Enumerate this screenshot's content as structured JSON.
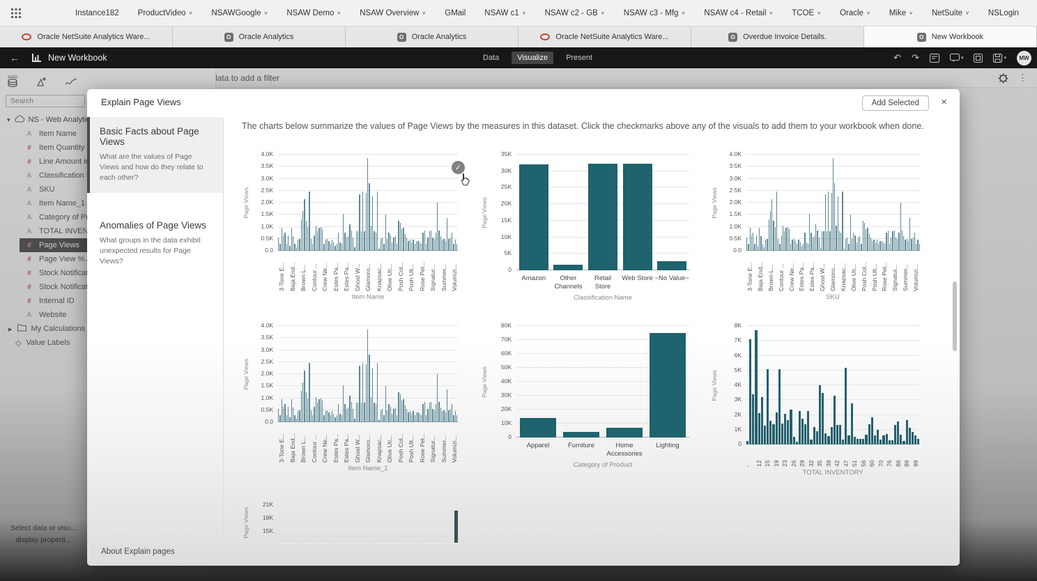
{
  "icons": {
    "back": "←",
    "undo": "↶",
    "redo": "↷",
    "close": "×",
    "check": "✓",
    "plus_circle": "⊕",
    "kebab": "⋮",
    "caret_down": "∨",
    "tree_caret": "▾",
    "collapsed_caret": "▸",
    "value_tag": "◇"
  },
  "colors": {
    "bar_teal": "#1e636d",
    "bar_dense": "#5a8794",
    "bar_inventory": "#24606d",
    "accent_red": "#c74634",
    "selected_row_bg": "#3f3f3f"
  },
  "bookmarks_bar": {
    "items": [
      {
        "label": "Instance182",
        "caret": false
      },
      {
        "label": "ProductVideo",
        "caret": true
      },
      {
        "label": "NSAWGoogle",
        "caret": true
      },
      {
        "label": "NSAW Demo",
        "caret": true
      },
      {
        "label": "NSAW Overview",
        "caret": true
      },
      {
        "label": "GMail",
        "caret": false
      },
      {
        "label": "NSAW c1",
        "caret": true
      },
      {
        "label": "NSAW c2 - GB",
        "caret": true
      },
      {
        "label": "NSAW c3 - Mfg",
        "caret": true
      },
      {
        "label": "NSAW c4 - Retail",
        "caret": true
      },
      {
        "label": "TCOE",
        "caret": true
      },
      {
        "label": "Oracle",
        "caret": true
      },
      {
        "label": "Mike",
        "caret": true
      },
      {
        "label": "NetSuite",
        "caret": true
      },
      {
        "label": "NSLogin",
        "caret": false
      }
    ]
  },
  "browser_tabs": [
    {
      "label": "Oracle NetSuite Analytics Ware...",
      "icon": "oracle-red",
      "active": false
    },
    {
      "label": "Oracle Analytics",
      "icon": "oa-gray",
      "active": false
    },
    {
      "label": "Oracle Analytics",
      "icon": "oa-gray",
      "active": false
    },
    {
      "label": "Oracle NetSuite Analytics Ware...",
      "icon": "oracle-red",
      "active": false
    },
    {
      "label": "Overdue Invoice Details.",
      "icon": "oa-gray",
      "active": false
    },
    {
      "label": "New Workbook",
      "icon": "oa-gray",
      "active": true
    }
  ],
  "toolbar": {
    "title": "New Workbook",
    "modes": [
      "Data",
      "Visualize",
      "Present"
    ],
    "active_mode": "Visualize",
    "avatar": "MW"
  },
  "filter_bar": {
    "label": "Click here or drag data to add a filter"
  },
  "sidebar": {
    "search_placeholder": "Search",
    "root_label": "NS - Web Analytics",
    "fields": [
      {
        "type": "A",
        "label": "Item Name",
        "selected": false
      },
      {
        "type": "#",
        "label": "Item Quantity",
        "selected": false
      },
      {
        "type": "#",
        "label": "Line Amount in",
        "selected": false
      },
      {
        "type": "A",
        "label": "Classification N...",
        "selected": false
      },
      {
        "type": "A",
        "label": "SKU",
        "selected": false
      },
      {
        "type": "A",
        "label": "Item Name_1",
        "selected": false
      },
      {
        "type": "A",
        "label": "Category of Pro...",
        "selected": false
      },
      {
        "type": "A",
        "label": "TOTAL INVENTO...",
        "selected": false
      },
      {
        "type": "#",
        "label": "Page Views",
        "selected": true
      },
      {
        "type": "#",
        "label": "Page View % Ad...",
        "selected": false
      },
      {
        "type": "#",
        "label": "Stock Notificati...",
        "selected": false
      },
      {
        "type": "#",
        "label": "Stock Notificati...",
        "selected": false
      },
      {
        "type": "#",
        "label": "Internal ID",
        "selected": false
      },
      {
        "type": "A",
        "label": "Website",
        "selected": false
      }
    ],
    "groups": [
      {
        "label": "My Calculations",
        "icon": "folder"
      },
      {
        "label": "Value Labels",
        "icon": "tag"
      }
    ],
    "hint_line1": "Select data or visu...",
    "hint_line2": "display properti..."
  },
  "modal": {
    "title": "Explain Page Views",
    "add_button": "Add Selected",
    "intro": "The charts below summarize the values of Page Views by the measures in this dataset. Click the checkmarks above any of the visuals to add them to your workbook when done.",
    "nav": [
      {
        "title": "Basic Facts about Page Views",
        "desc": "What are the values of Page Views and how do they relate to each other?",
        "selected": true
      },
      {
        "title": "Anomalies of Page Views",
        "desc": "What groups in the data exhibit unexpected results for Page Views?",
        "selected": false
      }
    ],
    "about_link": "About Explain pages"
  },
  "chart_data": {
    "shared": {
      "dense_item_labels": [
        "3-Tone E...",
        "Baja End...",
        "Brown L...",
        "Contour ...",
        "Crew Ne...",
        "Estes Pa...",
        "Estes Pa...",
        "Ghost W...",
        "Glamoro...",
        "Knapsac...",
        "Olive Uti...",
        "Posh Col...",
        "Posh Ult...",
        "Rose Pet...",
        "Signatur...",
        "Summer...",
        "Volumizi..."
      ],
      "dense_item_values": [
        0.55,
        0.3,
        0.95,
        0.65,
        0.75,
        0.3,
        0.65,
        0.2,
        0.95,
        0.6,
        0.3,
        0.15,
        0.45,
        0.5,
        1.3,
        1.65,
        2.15,
        1.25,
        1.0,
        2.45,
        0.5,
        0.3,
        0.65,
        1.05,
        0.8,
        0.95,
        1.0,
        0.9,
        0.3,
        0.45,
        0.5,
        0.4,
        0.3,
        0.45,
        0.35,
        0.2,
        0.3,
        0.75,
        0.35,
        0.3,
        1.55,
        0.75,
        0.55,
        0.6,
        1.1,
        0.85,
        0.55,
        0.15,
        0.8,
        0.8,
        2.35,
        0.8,
        2.45,
        0.8,
        2.4,
        3.85,
        2.8,
        1.05,
        2.25,
        0.8,
        0.75,
        2.45,
        0.1,
        0.5,
        0.55,
        0.3,
        1.5,
        0.5,
        0.75,
        0.65,
        0.35,
        0.55,
        0.6,
        0.3,
        1.25,
        1.15,
        0.9,
        0.95,
        0.7,
        0.55,
        0.4,
        0.45,
        0.35,
        0.45,
        0.3,
        0.4,
        0.4,
        0.35,
        0.3,
        0.75,
        0.85,
        0.3,
        0.55,
        0.8,
        0.85,
        0.55,
        0.5,
        0.75,
        2.0,
        0.85,
        0.6,
        0.45,
        0.5,
        0.4,
        1.35,
        0.5,
        0.55,
        0.75,
        0.3,
        0.45,
        0.3
      ],
      "inventory_labels": [
        "'",
        "12",
        "15",
        "19",
        "23",
        "26",
        "29",
        "32",
        "35",
        "39",
        "42",
        "47",
        "51",
        "56",
        "60",
        "70",
        "76",
        "86",
        "89",
        "99"
      ],
      "inventory_values": [
        0.25,
        7.1,
        3.4,
        7.7,
        2.1,
        3.2,
        1.25,
        5.1,
        1.6,
        1.35,
        2.15,
        5.1,
        1.4,
        2.05,
        1.65,
        2.35,
        0.5,
        0.2,
        2.25,
        1.75,
        1.35,
        2.25,
        0.35,
        1.2,
        0.9,
        4.0,
        3.5,
        0.75,
        0.55,
        1.2,
        3.3,
        1.3,
        1.3,
        0.35,
        5.2,
        0.6,
        2.8,
        0.5,
        0.4,
        0.4,
        0.4,
        0.65,
        1.35,
        1.85,
        0.6,
        1.0,
        0.35,
        0.6,
        0.7,
        0.3,
        0.3,
        1.3,
        1.55,
        0.65,
        0.25,
        1.65,
        1.15,
        0.85,
        0.6,
        0.4
      ]
    },
    "charts": [
      {
        "type": "bar",
        "dense": true,
        "selected": true,
        "ylabel": "Page Views",
        "xlabel": "Item Name",
        "ymax": 4,
        "yticks": [
          "0.0",
          "0.5K",
          "1.0K",
          "1.5K",
          "2.0K",
          "2.5K",
          "3.0K",
          "3.5K",
          "4.0K"
        ],
        "values_key": "dense_item_values",
        "labels_key": "dense_item_labels",
        "bar_color": "#5a8794"
      },
      {
        "type": "bar",
        "dense": false,
        "ylabel": "Page Views",
        "xlabel": "Classification Name",
        "ymax": 35,
        "yticks": [
          "0",
          "5K",
          "10K",
          "15K",
          "20K",
          "25K",
          "30K",
          "35K"
        ],
        "categories": [
          "Amazon",
          "Other Channels",
          "Retail Store",
          "Web Store",
          "~No Value~"
        ],
        "values": [
          32,
          1.7,
          32.3,
          32.3,
          2.8
        ],
        "bar_color": "#1e636d"
      },
      {
        "type": "bar",
        "dense": true,
        "ylabel": "Page Views",
        "xlabel": "SKU",
        "ymax": 4,
        "yticks": [
          "0.0",
          "0.5K",
          "1.0K",
          "1.5K",
          "2.0K",
          "2.5K",
          "3.0K",
          "3.5K",
          "4.0K"
        ],
        "values_key": "dense_item_values",
        "labels_key": "dense_item_labels",
        "bar_color": "#5a8794"
      },
      {
        "type": "bar",
        "dense": true,
        "ylabel": "Page Views",
        "xlabel": "Item Name_1",
        "ymax": 4,
        "yticks": [
          "0.0",
          "0.5K",
          "1.0K",
          "1.5K",
          "2.0K",
          "2.5K",
          "3.0K",
          "3.5K",
          "4.0K"
        ],
        "values_key": "dense_item_values",
        "labels_key": "dense_item_labels",
        "bar_color": "#5a8794"
      },
      {
        "type": "bar",
        "dense": false,
        "ylabel": "Page Views",
        "xlabel": "Category of Product",
        "ymax": 80,
        "yticks": [
          "0",
          "10K",
          "20K",
          "30K",
          "40K",
          "50K",
          "60K",
          "70K",
          "80K"
        ],
        "categories": [
          "Apparel",
          "Furniture",
          "Home Accessories",
          "Lighting"
        ],
        "values": [
          14,
          4,
          7,
          75
        ],
        "bar_color": "#1e636d"
      },
      {
        "type": "bar",
        "dense": true,
        "ylabel": "Page Views",
        "xlabel": "TOTAL INVENTORY",
        "ymax": 8,
        "yticks": [
          "0",
          "1K",
          "2K",
          "3K",
          "4K",
          "5K",
          "6K",
          "7K",
          "8K"
        ],
        "values_key": "inventory_values",
        "labels_key": "inventory_labels",
        "bar_color": "#24606d"
      },
      {
        "type": "bar",
        "partial": true,
        "ylabel": "Page Views",
        "yticks": [
          "21K",
          "18K",
          "15K"
        ],
        "visible_bar_top_value": "~19K",
        "bar_color": "#3a4e53"
      }
    ]
  }
}
